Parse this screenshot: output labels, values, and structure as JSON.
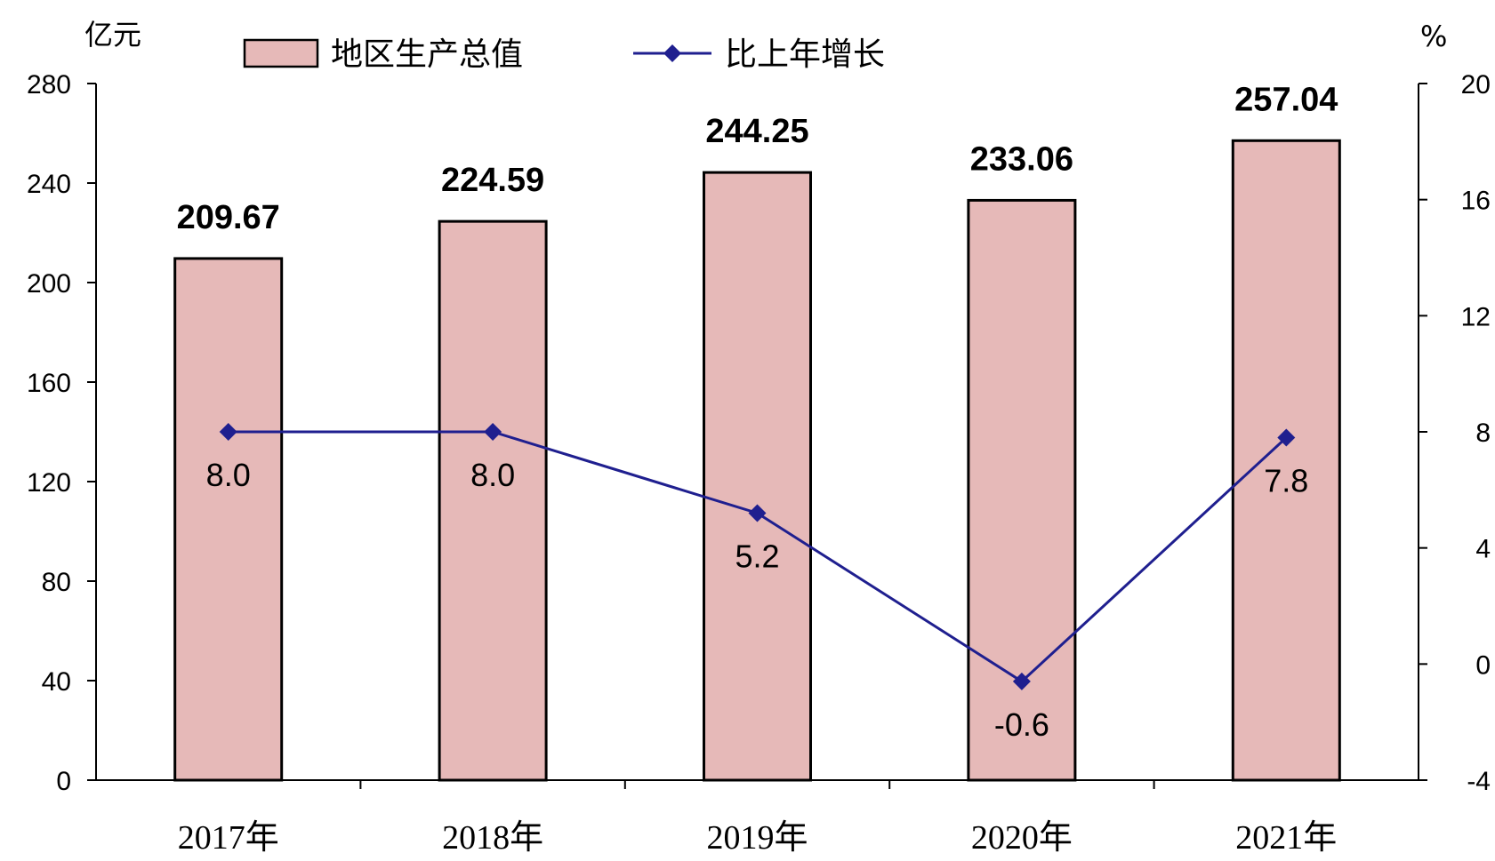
{
  "chart_data": {
    "type": "bar",
    "categories": [
      "2017年",
      "2018年",
      "2019年",
      "2020年",
      "2021年"
    ],
    "series": [
      {
        "name": "地区生产总值",
        "type": "bar",
        "axis": "left",
        "color": "#e6b9b8",
        "values": [
          209.67,
          224.59,
          244.25,
          233.06,
          257.04
        ],
        "labels": [
          "209.67",
          "224.59",
          "244.25",
          "233.06",
          "257.04"
        ]
      },
      {
        "name": "比上年增长",
        "type": "line",
        "axis": "right",
        "color": "#1f1f8f",
        "marker": "diamond",
        "values": [
          8.0,
          8.0,
          5.2,
          -0.6,
          7.8
        ],
        "labels": [
          "8.0",
          "8.0",
          "5.2",
          "-0.6",
          "7.8"
        ]
      }
    ],
    "y_left": {
      "unit": "亿元",
      "range": [
        0,
        280
      ],
      "ticks": [
        "0",
        "40",
        "80",
        "120",
        "160",
        "200",
        "240",
        "280"
      ]
    },
    "y_right": {
      "unit": "%",
      "range": [
        -4,
        20
      ],
      "ticks": [
        "-4",
        "0",
        "4",
        "8",
        "12",
        "16",
        "20"
      ]
    },
    "grid": false,
    "legend_position": "top-center"
  }
}
